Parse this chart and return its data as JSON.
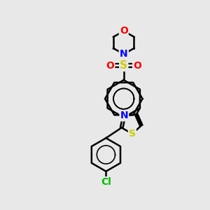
{
  "bg_color": "#e8e8e8",
  "bond_color": "#000000",
  "N_color": "#0000ff",
  "O_color": "#ff0000",
  "S_color": "#cccc00",
  "Cl_color": "#00bb00",
  "line_width": 1.8,
  "font_size": 10,
  "figsize": [
    3.0,
    3.0
  ],
  "dpi": 100,
  "xlim": [
    0,
    10
  ],
  "ylim": [
    0,
    10
  ]
}
